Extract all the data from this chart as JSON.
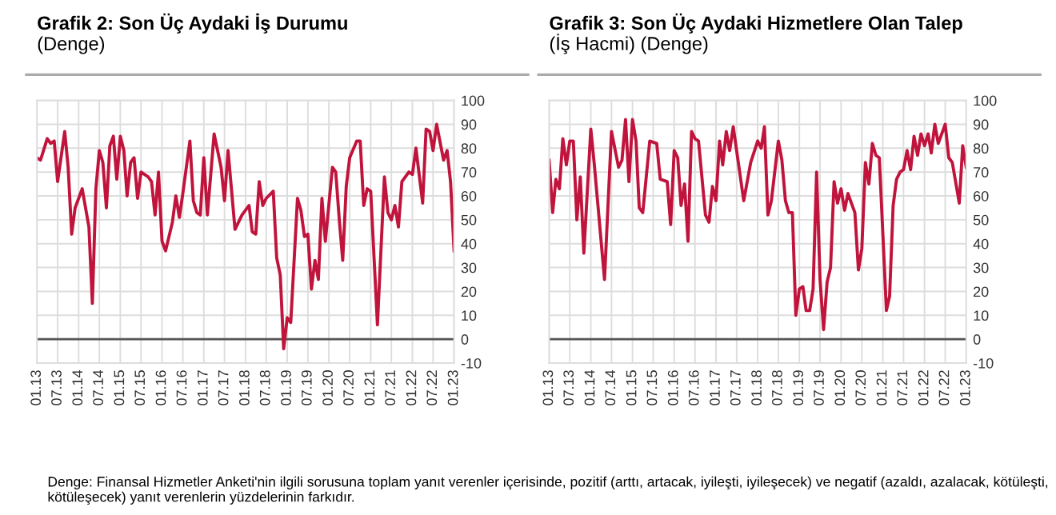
{
  "chart_data": [
    {
      "type": "line",
      "title": "Grafik 2: Son Üç Aydaki İş Durumu",
      "subtitle": "(Denge)",
      "x": [
        "2013-01",
        "2013-02",
        "2013-04",
        "2013-05",
        "2013-06",
        "2013-07",
        "2013-09",
        "2013-10",
        "2013-11",
        "2013-12",
        "2014-02",
        "2014-04",
        "2014-05",
        "2014-06",
        "2014-07",
        "2014-08",
        "2014-09",
        "2014-10",
        "2014-11",
        "2014-12",
        "2015-01",
        "2015-02",
        "2015-03",
        "2015-04",
        "2015-05",
        "2015-06",
        "2015-07",
        "2015-09",
        "2015-10",
        "2015-11",
        "2015-12",
        "2016-01",
        "2016-02",
        "2016-04",
        "2016-05",
        "2016-06",
        "2016-07",
        "2016-09",
        "2016-10",
        "2016-11",
        "2016-12",
        "2017-01",
        "2017-02",
        "2017-04",
        "2017-06",
        "2017-07",
        "2017-08",
        "2017-10",
        "2017-12",
        "2018-02",
        "2018-03",
        "2018-04",
        "2018-05",
        "2018-06",
        "2018-07",
        "2018-09",
        "2018-10",
        "2018-11",
        "2018-12",
        "2019-01",
        "2019-02",
        "2019-04",
        "2019-05",
        "2019-06",
        "2019-07",
        "2019-08",
        "2019-09",
        "2019-10",
        "2019-11",
        "2019-12",
        "2020-02",
        "2020-03",
        "2020-04",
        "2020-05",
        "2020-06",
        "2020-07",
        "2020-09",
        "2020-10",
        "2020-11",
        "2020-12",
        "2021-01",
        "2021-03",
        "2021-05",
        "2021-06",
        "2021-07",
        "2021-08",
        "2021-09",
        "2021-10",
        "2021-12",
        "2022-01",
        "2022-02",
        "2022-04",
        "2022-05",
        "2022-06",
        "2022-07",
        "2022-08",
        "2022-10",
        "2022-11",
        "2022-12",
        "2023-01"
      ],
      "series": [
        {
          "color": "#c0143c",
          "values": [
            76,
            75,
            84,
            82,
            83,
            66,
            87,
            72,
            44,
            55,
            63,
            47,
            15,
            63,
            79,
            74,
            55,
            81,
            85,
            67,
            85,
            79,
            60,
            74,
            76,
            59,
            70,
            68,
            66,
            52,
            70,
            41,
            37,
            49,
            60,
            51,
            61,
            83,
            58,
            53,
            52,
            76,
            52,
            86,
            72,
            58,
            79,
            46,
            52,
            56,
            45,
            44,
            66,
            56,
            59,
            62,
            34,
            27,
            -4,
            9,
            7,
            59,
            54,
            43,
            44,
            21,
            33,
            25,
            59,
            41,
            72,
            70,
            50,
            33,
            64,
            76,
            83,
            83,
            56,
            63,
            62,
            6,
            68,
            53,
            50,
            56,
            47,
            66,
            70,
            69,
            80,
            57,
            88,
            87,
            79,
            90,
            75,
            79,
            66,
            37
          ]
        }
      ],
      "xlim": [
        "2013-01",
        "2023-01"
      ],
      "xticks": [
        {
          "value": "2013-01",
          "label": "01.13"
        },
        {
          "value": "2013-07",
          "label": "07.13"
        },
        {
          "value": "2014-01",
          "label": "01.14"
        },
        {
          "value": "2014-07",
          "label": "07.14"
        },
        {
          "value": "2015-01",
          "label": "01.15"
        },
        {
          "value": "2015-07",
          "label": "07.15"
        },
        {
          "value": "2016-01",
          "label": "01.16"
        },
        {
          "value": "2016-07",
          "label": "07.16"
        },
        {
          "value": "2017-01",
          "label": "01.17"
        },
        {
          "value": "2017-07",
          "label": "07.17"
        },
        {
          "value": "2018-01",
          "label": "01.18"
        },
        {
          "value": "2018-07",
          "label": "07.18"
        },
        {
          "value": "2019-01",
          "label": "01.19"
        },
        {
          "value": "2019-07",
          "label": "07.19"
        },
        {
          "value": "2020-01",
          "label": "01.20"
        },
        {
          "value": "2020-07",
          "label": "07.20"
        },
        {
          "value": "2021-01",
          "label": "01.21"
        },
        {
          "value": "2021-07",
          "label": "07.21"
        },
        {
          "value": "2022-01",
          "label": "01.22"
        },
        {
          "value": "2022-07",
          "label": "07.22"
        },
        {
          "value": "2023-01",
          "label": "01.23"
        }
      ],
      "ylim": [
        -10,
        100
      ],
      "yticks": [
        -10,
        0,
        10,
        20,
        30,
        40,
        50,
        60,
        70,
        80,
        90,
        100
      ],
      "grid": true,
      "ref_lines": [
        {
          "axis": "y",
          "value": 0,
          "color": "#555555"
        }
      ],
      "annotations": [
        "Denge: Finansal Hizmetler Anketi'nin ilgili sorusuna toplam yanıt verenler içerisinde, pozitif (arttı, artacak, iyileşti, iyileşecek) ve negatif (azaldı, azalacak, kötüleşti, kötüleşecek) yanıt verenlerin yüzdelerinin farkıdır."
      ]
    },
    {
      "type": "line",
      "title": "Grafik 3: Son Üç Aydaki Hizmetlere Olan Talep",
      "subtitle": "(İş Hacmi) (Denge)",
      "x": [
        "2013-01",
        "2013-02",
        "2013-03",
        "2013-04",
        "2013-05",
        "2013-06",
        "2013-07",
        "2013-08",
        "2013-09",
        "2013-10",
        "2013-11",
        "2014-01",
        "2014-02",
        "2014-05",
        "2014-07",
        "2014-09",
        "2014-10",
        "2014-11",
        "2014-12",
        "2015-01",
        "2015-02",
        "2015-03",
        "2015-04",
        "2015-06",
        "2015-08",
        "2015-09",
        "2015-11",
        "2015-12",
        "2016-01",
        "2016-02",
        "2016-03",
        "2016-04",
        "2016-05",
        "2016-06",
        "2016-07",
        "2016-08",
        "2016-10",
        "2016-11",
        "2016-12",
        "2017-01",
        "2017-02",
        "2017-03",
        "2017-04",
        "2017-05",
        "2017-06",
        "2017-09",
        "2017-11",
        "2018-01",
        "2018-02",
        "2018-03",
        "2018-04",
        "2018-05",
        "2018-07",
        "2018-08",
        "2018-09",
        "2018-10",
        "2018-11",
        "2018-12",
        "2019-01",
        "2019-02",
        "2019-03",
        "2019-04",
        "2019-05",
        "2019-06",
        "2019-07",
        "2019-08",
        "2019-09",
        "2019-10",
        "2019-11",
        "2019-12",
        "2020-01",
        "2020-02",
        "2020-03",
        "2020-05",
        "2020-06",
        "2020-07",
        "2020-08",
        "2020-09",
        "2020-10",
        "2020-11",
        "2020-12",
        "2021-02",
        "2021-03",
        "2021-04",
        "2021-05",
        "2021-06",
        "2021-07",
        "2021-08",
        "2021-09",
        "2021-10",
        "2021-11",
        "2021-12",
        "2022-01",
        "2022-02",
        "2022-03",
        "2022-04",
        "2022-05",
        "2022-07",
        "2022-08",
        "2022-09",
        "2022-11",
        "2022-12",
        "2023-01"
      ],
      "series": [
        {
          "color": "#c0143c",
          "values": [
            75,
            53,
            67,
            63,
            84,
            73,
            83,
            83,
            50,
            68,
            36,
            88,
            73,
            25,
            87,
            72,
            75,
            92,
            66,
            92,
            83,
            55,
            53,
            83,
            82,
            67,
            66,
            48,
            79,
            76,
            56,
            65,
            41,
            87,
            84,
            83,
            52,
            49,
            64,
            58,
            83,
            73,
            87,
            79,
            89,
            58,
            74,
            83,
            80,
            89,
            52,
            58,
            83,
            75,
            58,
            53,
            53,
            10,
            21,
            22,
            12,
            12,
            21,
            70,
            25,
            4,
            24,
            30,
            66,
            57,
            63,
            54,
            61,
            53,
            29,
            38,
            74,
            65,
            82,
            77,
            76,
            12,
            18,
            56,
            67,
            70,
            71,
            79,
            71,
            85,
            77,
            86,
            81,
            86,
            78,
            90,
            82,
            90,
            76,
            74,
            57,
            81,
            72
          ]
        }
      ],
      "xlim": [
        "2013-01",
        "2023-01"
      ],
      "xticks": [
        {
          "value": "2013-01",
          "label": "01.13"
        },
        {
          "value": "2013-07",
          "label": "07.13"
        },
        {
          "value": "2014-01",
          "label": "01.14"
        },
        {
          "value": "2014-07",
          "label": "07.14"
        },
        {
          "value": "2015-01",
          "label": "01.15"
        },
        {
          "value": "2015-07",
          "label": "07.15"
        },
        {
          "value": "2016-01",
          "label": "01.16"
        },
        {
          "value": "2016-07",
          "label": "07.16"
        },
        {
          "value": "2017-01",
          "label": "01.17"
        },
        {
          "value": "2017-07",
          "label": "07.17"
        },
        {
          "value": "2018-01",
          "label": "01.18"
        },
        {
          "value": "2018-07",
          "label": "07.18"
        },
        {
          "value": "2019-01",
          "label": "01.19"
        },
        {
          "value": "2019-07",
          "label": "07.19"
        },
        {
          "value": "2020-01",
          "label": "01.20"
        },
        {
          "value": "2020-07",
          "label": "07.20"
        },
        {
          "value": "2021-01",
          "label": "01.21"
        },
        {
          "value": "2021-07",
          "label": "07.21"
        },
        {
          "value": "2022-01",
          "label": "01.22"
        },
        {
          "value": "2022-07",
          "label": "07.22"
        },
        {
          "value": "2023-01",
          "label": "01.23"
        }
      ],
      "ylim": [
        -10,
        100
      ],
      "yticks": [
        -10,
        0,
        10,
        20,
        30,
        40,
        50,
        60,
        70,
        80,
        90,
        100
      ],
      "grid": true,
      "ref_lines": [
        {
          "axis": "y",
          "value": 0,
          "color": "#555555"
        }
      ]
    }
  ]
}
